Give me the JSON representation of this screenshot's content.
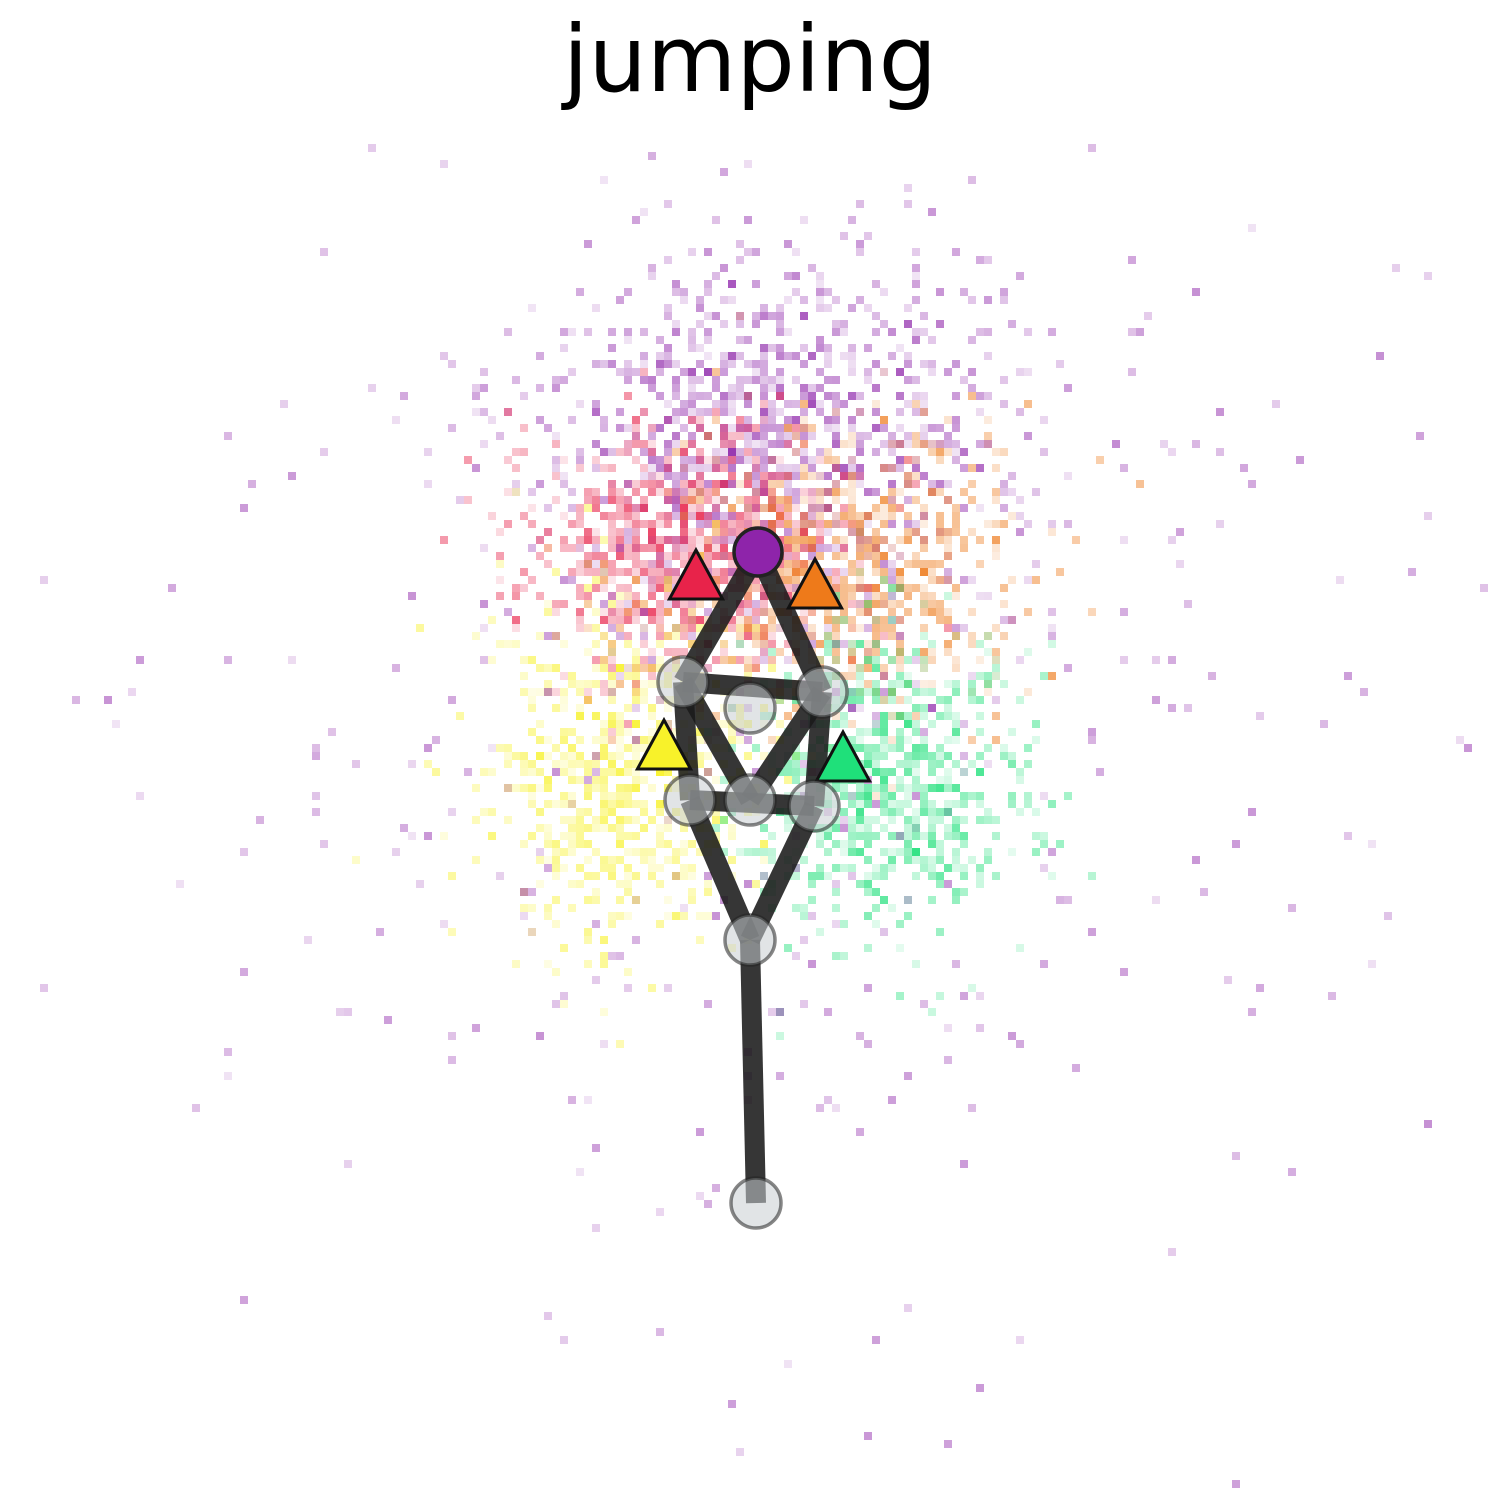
{
  "title": "jumping",
  "colors": {
    "head": "#8e24aa",
    "left_ear": "#e8234a",
    "right_ear": "#ee7a1a",
    "left_hand": "#f8f22a",
    "right_hand": "#1fe07a",
    "skeleton": "#1a1a1a",
    "joint_fill": "#c8cdd2"
  },
  "keypoints": [
    {
      "name": "head",
      "marker": "circle"
    },
    {
      "name": "left-ear",
      "marker": "triangle"
    },
    {
      "name": "right-ear",
      "marker": "triangle"
    },
    {
      "name": "left-shoulder",
      "marker": "circle"
    },
    {
      "name": "right-shoulder",
      "marker": "circle"
    },
    {
      "name": "neck-center",
      "marker": "circle"
    },
    {
      "name": "left-hand",
      "marker": "triangle"
    },
    {
      "name": "right-hand",
      "marker": "triangle"
    },
    {
      "name": "left-hip",
      "marker": "circle"
    },
    {
      "name": "right-hip",
      "marker": "circle"
    },
    {
      "name": "pelvis-center",
      "marker": "circle"
    },
    {
      "name": "tail-base",
      "marker": "circle"
    },
    {
      "name": "tail-tip",
      "marker": "circle"
    }
  ]
}
